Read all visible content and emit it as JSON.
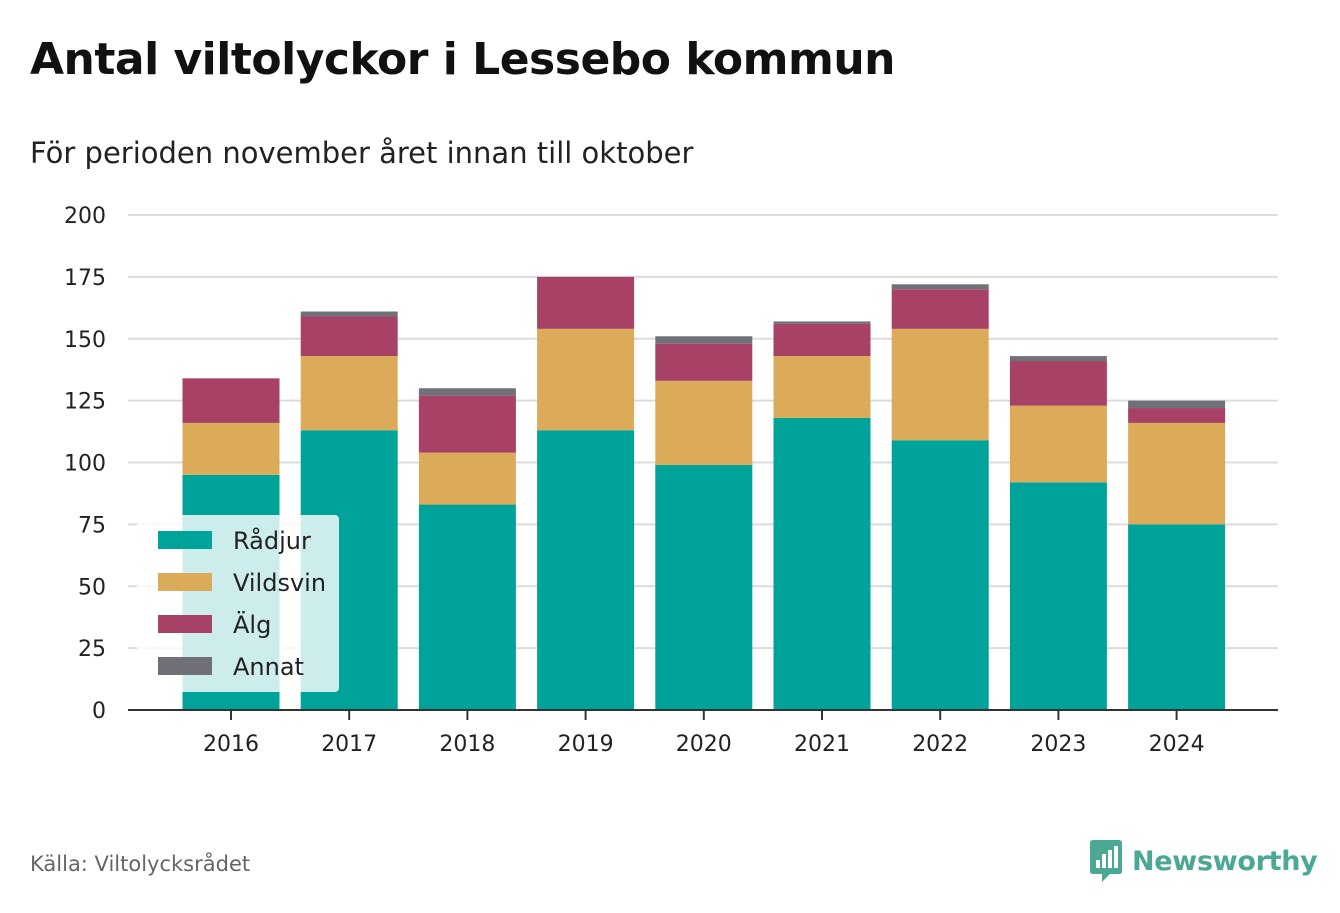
{
  "header": {
    "title": "Antal viltolyckor i Lessebo kommun",
    "subtitle": "För perioden november året innan till oktober"
  },
  "footer": {
    "source": "Källa: Viltolycksrådet",
    "brand": "Newsworthy",
    "brand_icon": "bar-chart-logo-icon",
    "brand_color": "#4aa894"
  },
  "chart_data": {
    "type": "bar",
    "stacked": true,
    "categories": [
      "2016",
      "2017",
      "2018",
      "2019",
      "2020",
      "2021",
      "2022",
      "2023",
      "2024"
    ],
    "series": [
      {
        "name": "Rådjur",
        "color": "#00a39a",
        "values": [
          95,
          113,
          83,
          113,
          99,
          118,
          109,
          92,
          75
        ]
      },
      {
        "name": "Vildsvin",
        "color": "#dbab59",
        "values": [
          21,
          30,
          21,
          41,
          34,
          25,
          45,
          31,
          41
        ]
      },
      {
        "name": "Älg",
        "color": "#a74166",
        "values": [
          18,
          16,
          23,
          21,
          15,
          13,
          16,
          18,
          6
        ]
      },
      {
        "name": "Annat",
        "color": "#707078",
        "values": [
          0,
          2,
          3,
          0,
          3,
          1,
          2,
          2,
          3
        ]
      }
    ],
    "ylim": [
      0,
      200
    ],
    "yticks": [
      0,
      25,
      50,
      75,
      100,
      125,
      150,
      175,
      200
    ],
    "grid": true,
    "legend_position": "bottom-left"
  }
}
